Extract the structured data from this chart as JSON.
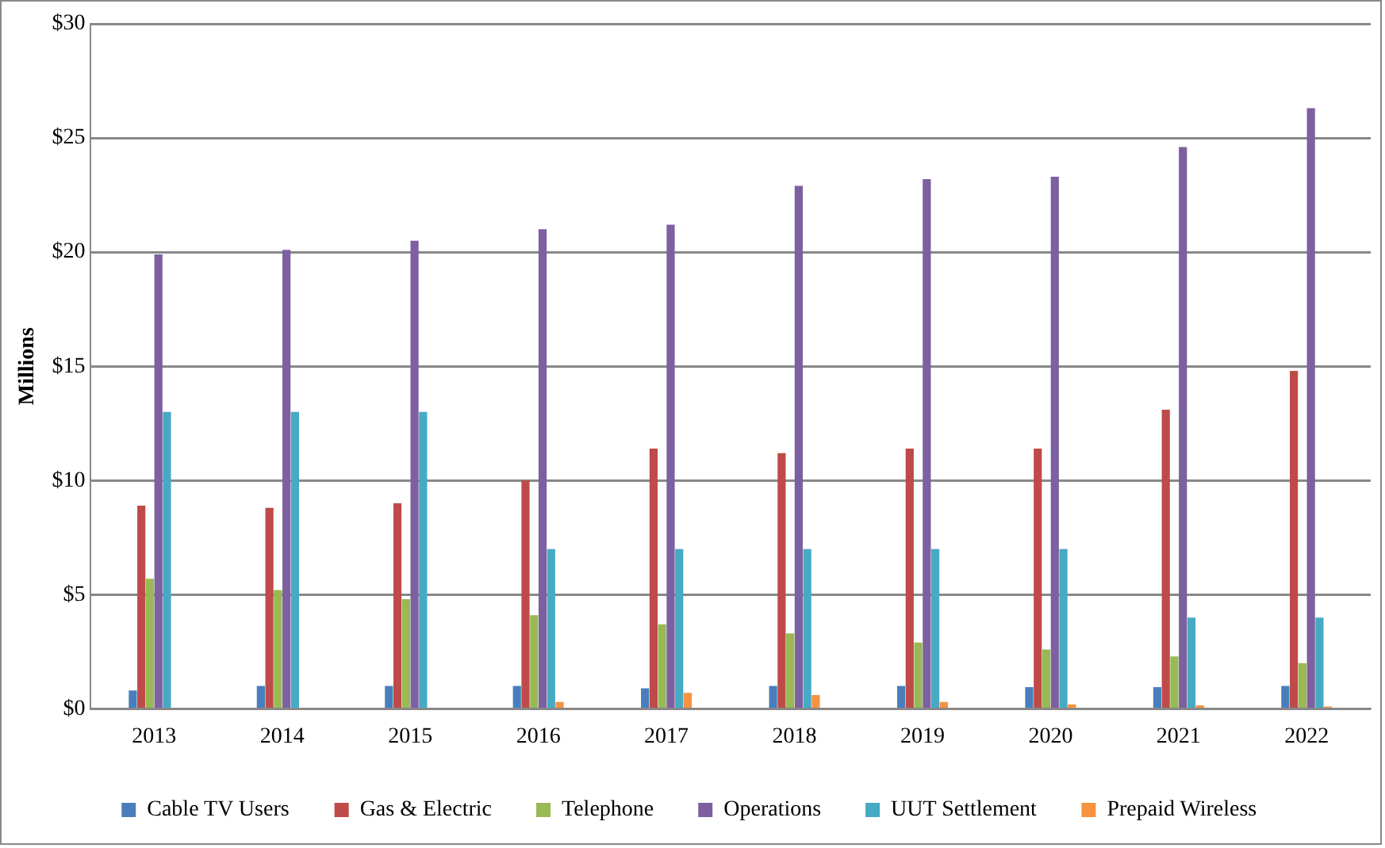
{
  "chart_data": {
    "type": "bar",
    "ylabel": "Millions",
    "categories": [
      "2013",
      "2014",
      "2015",
      "2016",
      "2017",
      "2018",
      "2019",
      "2020",
      "2021",
      "2022"
    ],
    "series": [
      {
        "name": "Cable TV Users",
        "color": "#4a7ebb",
        "values": [
          0.8,
          1.0,
          1.0,
          1.0,
          0.9,
          1.0,
          1.0,
          0.95,
          0.95,
          1.0
        ]
      },
      {
        "name": "Gas & Electric",
        "color": "#be4b48",
        "values": [
          8.9,
          8.8,
          9.0,
          10.0,
          11.4,
          11.2,
          11.4,
          11.4,
          13.1,
          14.8
        ]
      },
      {
        "name": "Telephone",
        "color": "#98b954",
        "values": [
          5.7,
          5.2,
          4.8,
          4.1,
          3.7,
          3.3,
          2.9,
          2.6,
          2.3,
          2.0
        ]
      },
      {
        "name": "Operations",
        "color": "#7d60a0",
        "values": [
          19.9,
          20.1,
          20.5,
          21.0,
          21.2,
          22.9,
          23.2,
          23.3,
          24.6,
          26.3
        ]
      },
      {
        "name": "UUT Settlement",
        "color": "#46aac5",
        "values": [
          13,
          13,
          13,
          7,
          7,
          7,
          7,
          7,
          4,
          4
        ]
      },
      {
        "name": "Prepaid Wireless",
        "color": "#f69240",
        "values": [
          null,
          null,
          null,
          0.3,
          0.7,
          0.6,
          0.3,
          0.2,
          0.15,
          0.1
        ]
      }
    ],
    "ylim": [
      0,
      30
    ],
    "yticks": [
      {
        "value": 0,
        "label": "$0"
      },
      {
        "value": 5,
        "label": "$5"
      },
      {
        "value": 10,
        "label": "$10"
      },
      {
        "value": 15,
        "label": "$15"
      },
      {
        "value": 20,
        "label": "$20"
      },
      {
        "value": 25,
        "label": "$25"
      },
      {
        "value": 30,
        "label": "$30"
      }
    ],
    "grid": "y",
    "legend": "bottom"
  }
}
